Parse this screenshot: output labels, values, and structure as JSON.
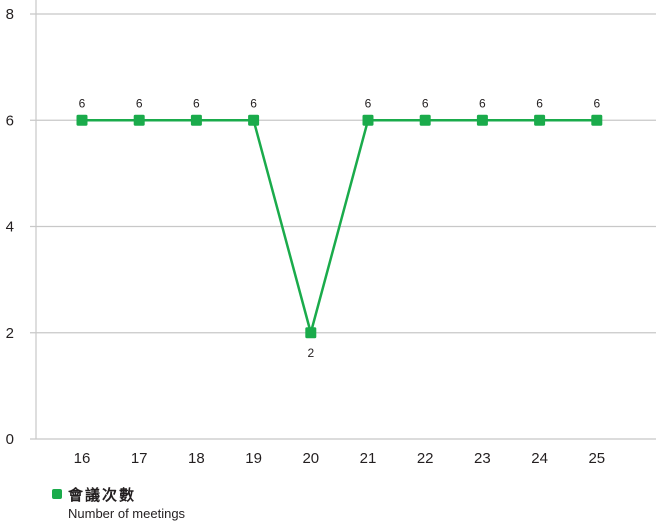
{
  "chart_data": {
    "type": "line",
    "categories": [
      "16",
      "17",
      "18",
      "19",
      "20",
      "21",
      "22",
      "23",
      "24",
      "25"
    ],
    "series": [
      {
        "name": "會議次數",
        "name_en": "Number of meetings",
        "values": [
          6,
          6,
          6,
          6,
          2,
          6,
          6,
          6,
          6,
          6
        ],
        "color": "#1aab4b"
      }
    ],
    "ylim": [
      0,
      8
    ],
    "yticks": [
      0,
      2,
      4,
      6,
      8
    ],
    "grid": true,
    "data_labels": true,
    "legend_position": "bottom-left"
  }
}
